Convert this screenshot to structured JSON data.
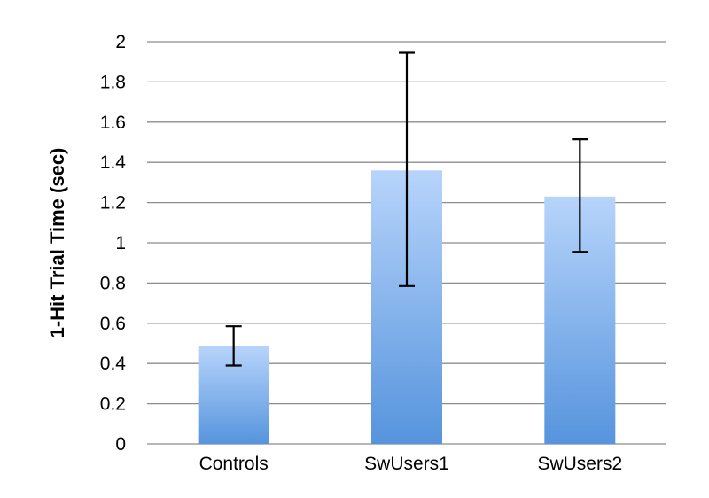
{
  "chart_data": {
    "type": "bar",
    "title": "",
    "xlabel": "",
    "ylabel": "1-Hit Trial Time (sec)",
    "categories": [
      "Controls",
      "SwUsers1",
      "SwUsers2"
    ],
    "values": [
      0.485,
      1.36,
      1.23
    ],
    "error_bars": {
      "upper": [
        0.585,
        1.945,
        1.515
      ],
      "lower": [
        0.39,
        0.785,
        0.955
      ]
    },
    "ylim": [
      0,
      2
    ],
    "yticks": [
      "0",
      "0.2",
      "0.4",
      "0.6",
      "0.8",
      "1",
      "1.2",
      "1.4",
      "1.6",
      "1.8",
      "2"
    ],
    "grid": true,
    "legend": "none",
    "colors": {
      "bar_top": "#b7d4fb",
      "bar_bottom": "#5694dd",
      "gridline": "#8c8c8c",
      "error_bar": "#000000"
    }
  }
}
